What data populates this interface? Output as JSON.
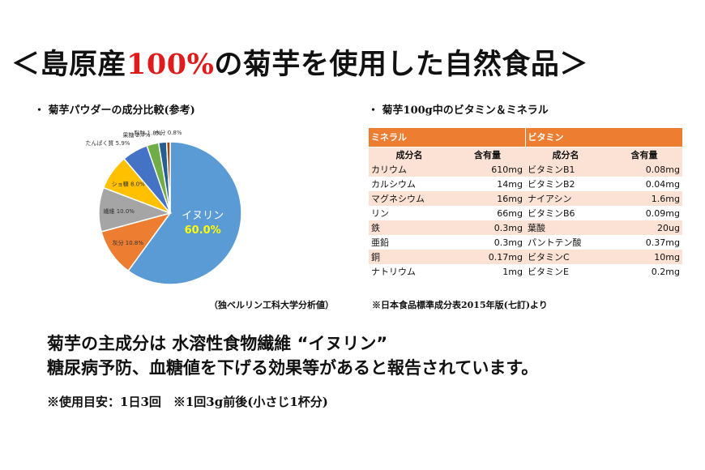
{
  "title": {
    "prefix": "＜島原産",
    "highlight": "100%",
    "suffix": "の菊芋を使用した自然食品＞"
  },
  "pie_section": {
    "heading": "・ 菊芋パウダーの成分比較(参考)",
    "source": "（独ベルリン工科大学分析値）"
  },
  "table_section": {
    "heading": "・ 菊芋100g中のビタミン＆ミネラル",
    "source": "※日本食品標準成分表2015年版(七訂)より"
  },
  "chart_data": {
    "type": "pie",
    "slices": [
      {
        "label": "イヌリン",
        "value": 60.0,
        "display": "60.0%",
        "color": "#5b9bd5"
      },
      {
        "label": "灰分",
        "value": 10.8,
        "display": "10.8%",
        "color": "#ed7d31"
      },
      {
        "label": "繊維",
        "value": 10.0,
        "display": "10.0%",
        "color": "#a5a5a5"
      },
      {
        "label": "ショ糖",
        "value": 8.0,
        "display": "8.0%",
        "color": "#ffc000"
      },
      {
        "label": "たんぱく質",
        "value": 5.9,
        "display": "5.9%",
        "color": "#4472c4"
      },
      {
        "label": "果糖",
        "value": 2.7,
        "display": "2.7%",
        "color": "#70ad47"
      },
      {
        "label": "脂肪",
        "value": 1.8,
        "display": "1.8%",
        "color": "#255e91"
      },
      {
        "label": "水分",
        "value": 0.8,
        "display": "0.8%",
        "color": "#9e480e"
      }
    ]
  },
  "mineral_table": {
    "group_minerals": "ミネラル",
    "group_vitamins": "ビタミン",
    "headers": [
      "成分名",
      "含有量",
      "成分名",
      "含有量"
    ],
    "rows": [
      [
        "カリウム",
        "610mg",
        "ビタミンB1",
        "0.08mg"
      ],
      [
        "カルシウム",
        "14mg",
        "ビタミンB2",
        "0.04mg"
      ],
      [
        "マグネシウム",
        "16mg",
        "ナイアシン",
        "1.6mg"
      ],
      [
        "リン",
        "66mg",
        "ビタミンB6",
        "0.09mg"
      ],
      [
        "鉄",
        "0.3mg",
        "葉酸",
        "20ug"
      ],
      [
        "亜鉛",
        "0.3mg",
        "パントテン酸",
        "0.37mg"
      ],
      [
        "銅",
        "0.17mg",
        "ビタミンC",
        "10mg"
      ],
      [
        "ナトリウム",
        "1mg",
        "ビタミンE",
        "0.2mg"
      ]
    ]
  },
  "body": {
    "line1": "菊芋の主成分は 水溶性食物繊維 “イヌリン”",
    "line2": "糖尿病予防、血糖値を下げる効果等があると報告されています。"
  },
  "usage": "※使用目安：1日3回　※1回3g前後(小さじ1杯分)"
}
